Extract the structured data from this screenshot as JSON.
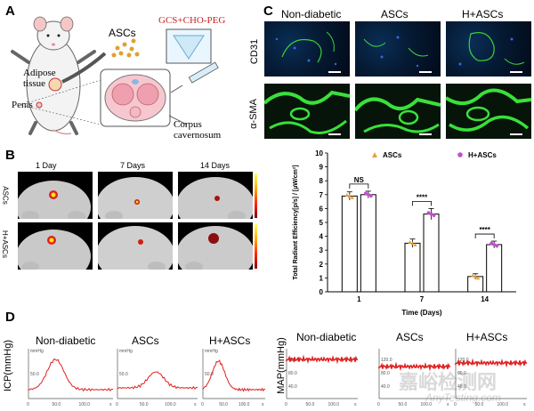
{
  "panel_a": {
    "letter": "A",
    "asc_label": "ASCs",
    "gel_label": "GCS+CHO-PEG",
    "adipose_label_1": "Adipose",
    "adipose_label_2": "tissue",
    "penis_label": "Penis",
    "corpus_label_1": "Corpus",
    "corpus_label_2": "cavernosum"
  },
  "panel_b": {
    "letter": "B",
    "timepoints": [
      "1 Day",
      "7 Days",
      "14 Days"
    ],
    "rows": [
      "ASCs",
      "H+ASCs"
    ]
  },
  "panel_c": {
    "letter": "C",
    "columns": [
      "Non-diabetic",
      "ASCs",
      "H+ASCs"
    ],
    "rows": [
      "CD31",
      "α-SMA"
    ]
  },
  "chart_data": {
    "type": "bar",
    "categories": [
      "1",
      "7",
      "14"
    ],
    "series": [
      {
        "name": "ASCs",
        "values": [
          6.9,
          3.5,
          1.1
        ],
        "errors": [
          0.3,
          0.3,
          0.2
        ],
        "color": "#e8a23a"
      },
      {
        "name": "H+ASCs",
        "values": [
          7.0,
          5.6,
          3.4
        ],
        "errors": [
          0.25,
          0.4,
          0.25
        ],
        "color": "#c44dd1"
      }
    ],
    "xlabel": "Time (Days)",
    "ylabel": "Total Radiant Efficiency[p/s] / [µW/cm²]",
    "ylim": [
      0,
      10
    ],
    "yticks": [
      "0",
      "1",
      "2",
      "3",
      "4",
      "5",
      "6",
      "7",
      "8",
      "9",
      "10"
    ],
    "significance": [
      "NS",
      "****",
      "****"
    ],
    "legend_position": "top"
  },
  "panel_d": {
    "letter": "D",
    "icp_ylabel": "ICP(mmHg)",
    "map_ylabel": "MAP(mmHg)",
    "icp_groups": [
      "Non-diabetic",
      "ASCs",
      "H+ASCs"
    ],
    "map_groups": [
      "Non-diabetic",
      "ASCs",
      "H+ASCs"
    ],
    "icp_axis_unit": "mmHg",
    "icp_tick_mid": "50.0",
    "time_ticks": [
      "50.0",
      "100.0"
    ],
    "time_unit": "s",
    "map_ticks": [
      "120.0",
      "80.0",
      "40.0"
    ]
  },
  "watermark": {
    "line1": "嘉峪检测网",
    "line2": "AnyTesting.com"
  },
  "colors": {
    "icp_trace": "#e02020",
    "fluor_green": "#39e03a",
    "nucleus_blue": "#2a55d8"
  }
}
